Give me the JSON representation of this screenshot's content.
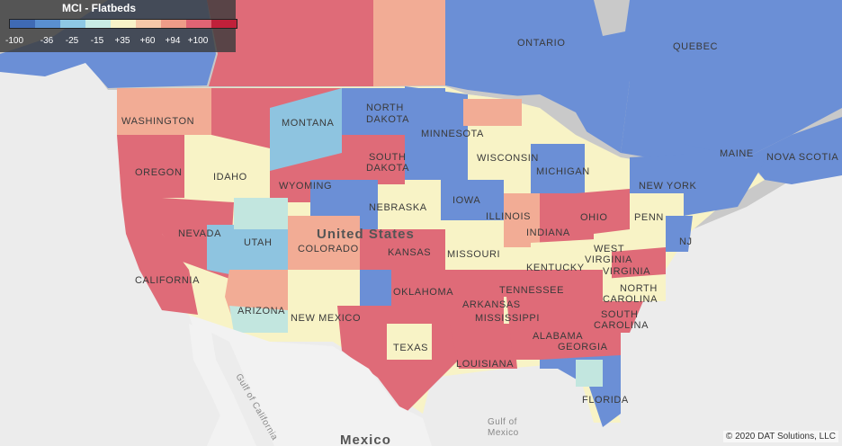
{
  "legend": {
    "title": "MCI - Flatbeds",
    "colors": [
      "#3f6ab4",
      "#5a8fd0",
      "#8ec8e4",
      "#c8ebe4",
      "#f9f3c8",
      "#f6c8a8",
      "#ef9c88",
      "#df6474",
      "#c0203a"
    ],
    "ticks": [
      "-100",
      "-36",
      "-25",
      "-15",
      "+35",
      "+60",
      "+94",
      "+100"
    ]
  },
  "scale_colors": {
    "strong_negative": "#6b8fd6",
    "negative": "#8ec4e0",
    "slight_negative": "#c2e6df",
    "neutral": "#f8f3c6",
    "slight_positive": "#f2ac95",
    "positive": "#df6b78",
    "land_background": "#c8c8c8",
    "water": "#ececec"
  },
  "labels": {
    "ontario": "ONTARIO",
    "quebec": "QUEBEC",
    "washington": "WASHINGTON",
    "oregon": "OREGON",
    "idaho": "IDAHO",
    "montana": "MONTANA",
    "wyoming": "WYOMING",
    "north_dakota_1": "NORTH",
    "north_dakota_2": "DAKOTA",
    "south_dakota_1": "SOUTH",
    "south_dakota_2": "DAKOTA",
    "minnesota": "MINNESOTA",
    "wisconsin": "WISCONSIN",
    "michigan": "MICHIGAN",
    "iowa": "IOWA",
    "nebraska": "NEBRASKA",
    "illinois": "ILLINOIS",
    "indiana": "INDIANA",
    "ohio": "OHIO",
    "nevada": "NEVADA",
    "utah": "UTAH",
    "colorado": "COLORADO",
    "kansas": "KANSAS",
    "missouri": "MISSOURI",
    "california": "CALIFORNIA",
    "arizona": "ARIZONA",
    "new_mexico": "NEW MEXICO",
    "oklahoma": "OKLAHOMA",
    "arkansas": "ARKANSAS",
    "texas": "TEXAS",
    "louisiana": "LOUISIANA",
    "mississippi": "MISSISSIPPI",
    "alabama": "ALABAMA",
    "georgia": "GEORGIA",
    "florida": "FLORIDA",
    "tennessee": "TENNESSEE",
    "kentucky": "KENTUCKY",
    "west_virginia_1": "WEST",
    "west_virginia_2": "VIRGINIA",
    "virginia": "VIRGINIA",
    "north_carolina_1": "NORTH",
    "north_carolina_2": "CAROLINA",
    "south_carolina_1": "SOUTH",
    "south_carolina_2": "CAROLINA",
    "penn": "PENN",
    "new_york": "NEW YORK",
    "nj": "NJ",
    "maine": "MAINE",
    "nova_scotia": "NOVA SCOTIA",
    "united_states": "United States",
    "mexico": "Mexico",
    "gulf_of_mexico_1": "Gulf of",
    "gulf_of_mexico_2": "Mexico",
    "gulf_of_california": "Gulf of California"
  },
  "copyright": "© 2020 DAT Solutions, LLC"
}
